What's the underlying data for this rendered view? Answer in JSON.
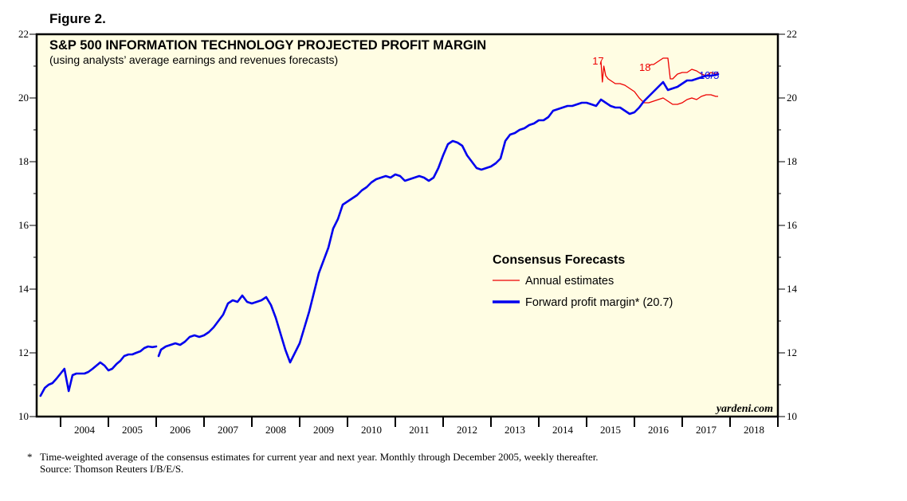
{
  "figure_label": "Figure 2.",
  "footnote": {
    "marker": "*",
    "line1": "Time-weighted average of the consensus estimates for current year and next year. Monthly through December 2005, weekly thereafter.",
    "line2": "Source: Thomson Reuters I/B/E/S."
  },
  "colors": {
    "forward": "#0000ee",
    "annual": "#ee0000",
    "background": "#fffde3",
    "frame": "#000000"
  },
  "chart_data": {
    "type": "line",
    "title": "S&P 500 INFORMATION TECHNOLOGY PROJECTED PROFIT MARGIN",
    "subtitle": "(using analysts’ average earnings and revenues forecasts)",
    "watermark": "yardeni.com",
    "xlim": [
      2003.5,
      2019.0
    ],
    "ylim": [
      10,
      22
    ],
    "yticks": [
      10,
      12,
      14,
      16,
      18,
      20,
      22
    ],
    "ytick_labels": [
      "10",
      "12",
      "14",
      "16",
      "18",
      "20",
      "22"
    ],
    "year_labels": [
      "2004",
      "2005",
      "2006",
      "2007",
      "2008",
      "2009",
      "2010",
      "2011",
      "2012",
      "2013",
      "2014",
      "2015",
      "2016",
      "2017",
      "2018"
    ],
    "legend": {
      "title": "Consensus Forecasts",
      "position": "center-right",
      "entries": [
        {
          "name": "Annual estimates",
          "style": "thin-red"
        },
        {
          "name": "Forward profit margin* (20.7)",
          "style": "thick-blue"
        }
      ]
    },
    "annotations": [
      {
        "text": "17",
        "x": 2015.12,
        "y": 21.05
      },
      {
        "text": "18",
        "x": 2016.1,
        "y": 20.85
      },
      {
        "text": "10/5",
        "x": 2017.35,
        "y": 20.6
      }
    ],
    "series": [
      {
        "name": "Forward profit margin",
        "segments": [
          {
            "x": [
              2003.58,
              2003.67,
              2003.75,
              2003.83,
              2003.92,
              2004.0,
              2004.08,
              2004.17,
              2004.25,
              2004.33,
              2004.42,
              2004.5,
              2004.58,
              2004.67,
              2004.75,
              2004.83,
              2004.92,
              2005.0,
              2005.08,
              2005.17,
              2005.25,
              2005.33,
              2005.42,
              2005.5,
              2005.58,
              2005.67,
              2005.75,
              2005.83,
              2005.92,
              2006.0
            ],
            "y": [
              10.65,
              10.9,
              11.0,
              11.05,
              11.2,
              11.35,
              11.5,
              10.8,
              11.3,
              11.35,
              11.35,
              11.35,
              11.4,
              11.5,
              11.6,
              11.7,
              11.6,
              11.45,
              11.5,
              11.65,
              11.75,
              11.9,
              11.95,
              11.95,
              12.0,
              12.05,
              12.15,
              12.2,
              12.18,
              12.2
            ]
          },
          {
            "x": [
              2006.05,
              2006.1,
              2006.2,
              2006.3,
              2006.4,
              2006.5,
              2006.6,
              2006.7,
              2006.8,
              2006.9,
              2007.0,
              2007.1,
              2007.2,
              2007.3,
              2007.4,
              2007.5,
              2007.6,
              2007.7,
              2007.8,
              2007.9,
              2008.0,
              2008.1,
              2008.2,
              2008.3,
              2008.4,
              2008.5,
              2008.6,
              2008.7,
              2008.8,
              2008.9,
              2009.0,
              2009.1,
              2009.2,
              2009.3,
              2009.4,
              2009.5,
              2009.6,
              2009.7,
              2009.8,
              2009.9,
              2010.0,
              2010.1,
              2010.2,
              2010.3,
              2010.4,
              2010.5,
              2010.6,
              2010.7,
              2010.8,
              2010.9,
              2011.0,
              2011.1,
              2011.2,
              2011.3,
              2011.4,
              2011.5,
              2011.6,
              2011.7,
              2011.8,
              2011.9,
              2012.0,
              2012.1,
              2012.2,
              2012.3,
              2012.4,
              2012.5,
              2012.6,
              2012.7,
              2012.8,
              2012.9,
              2013.0,
              2013.1,
              2013.2,
              2013.3,
              2013.4,
              2013.5,
              2013.6,
              2013.7,
              2013.8,
              2013.9,
              2014.0,
              2014.1,
              2014.2,
              2014.3,
              2014.4,
              2014.5,
              2014.6,
              2014.7,
              2014.8,
              2014.9,
              2015.0,
              2015.1,
              2015.2,
              2015.3,
              2015.4,
              2015.5,
              2015.6,
              2015.7,
              2015.8,
              2015.9,
              2016.0,
              2016.1,
              2016.2,
              2016.3,
              2016.4,
              2016.5,
              2016.6,
              2016.7,
              2016.8,
              2016.9,
              2017.0,
              2017.1,
              2017.2,
              2017.3,
              2017.4,
              2017.5,
              2017.6,
              2017.7,
              2017.75
            ],
            "y": [
              11.9,
              12.1,
              12.2,
              12.25,
              12.3,
              12.25,
              12.35,
              12.5,
              12.55,
              12.5,
              12.55,
              12.65,
              12.8,
              13.0,
              13.2,
              13.55,
              13.65,
              13.6,
              13.8,
              13.6,
              13.55,
              13.6,
              13.65,
              13.75,
              13.5,
              13.1,
              12.6,
              12.1,
              11.7,
              12.0,
              12.3,
              12.8,
              13.3,
              13.9,
              14.5,
              14.9,
              15.3,
              15.9,
              16.2,
              16.65,
              16.75,
              16.85,
              16.95,
              17.1,
              17.2,
              17.35,
              17.45,
              17.5,
              17.55,
              17.5,
              17.6,
              17.55,
              17.4,
              17.45,
              17.5,
              17.55,
              17.5,
              17.4,
              17.5,
              17.8,
              18.2,
              18.55,
              18.65,
              18.6,
              18.5,
              18.2,
              18.0,
              17.8,
              17.75,
              17.8,
              17.85,
              17.95,
              18.1,
              18.65,
              18.85,
              18.9,
              19.0,
              19.05,
              19.15,
              19.2,
              19.3,
              19.3,
              19.4,
              19.6,
              19.65,
              19.7,
              19.75,
              19.75,
              19.8,
              19.85,
              19.85,
              19.8,
              19.75,
              19.95,
              19.85,
              19.75,
              19.7,
              19.7,
              19.6,
              19.5,
              19.55,
              19.7,
              19.9,
              20.05,
              20.2,
              20.35,
              20.5,
              20.25,
              20.3,
              20.35,
              20.45,
              20.55,
              20.55,
              20.6,
              20.65,
              20.7,
              20.7,
              20.72,
              20.75
            ]
          }
        ]
      },
      {
        "name": "Annual estimates 17",
        "x": [
          2015.3,
          2015.33,
          2015.36,
          2015.4,
          2015.45,
          2015.5,
          2015.6,
          2015.7,
          2015.8,
          2015.9,
          2016.0,
          2016.1,
          2016.2,
          2016.3,
          2016.4,
          2016.5,
          2016.6,
          2016.7,
          2016.8,
          2016.9,
          2017.0,
          2017.1,
          2017.2,
          2017.3,
          2017.4,
          2017.5,
          2017.6,
          2017.7,
          2017.75
        ],
        "y": [
          21.15,
          20.5,
          21.0,
          20.7,
          20.6,
          20.55,
          20.45,
          20.45,
          20.4,
          20.3,
          20.2,
          20.0,
          19.85,
          19.85,
          19.9,
          19.95,
          20.0,
          19.9,
          19.8,
          19.8,
          19.85,
          19.95,
          20.0,
          19.95,
          20.05,
          20.1,
          20.1,
          20.05,
          20.05
        ]
      },
      {
        "name": "Annual estimates 18",
        "x": [
          2016.3,
          2016.35,
          2016.4,
          2016.5,
          2016.6,
          2016.7,
          2016.75,
          2016.8,
          2016.9,
          2017.0,
          2017.1,
          2017.2,
          2017.3,
          2017.4,
          2017.5,
          2017.6,
          2017.7,
          2017.75
        ],
        "y": [
          21.0,
          21.05,
          21.05,
          21.15,
          21.25,
          21.25,
          20.6,
          20.6,
          20.75,
          20.8,
          20.8,
          20.9,
          20.85,
          20.75,
          20.7,
          20.8,
          20.75,
          20.8
        ]
      }
    ]
  }
}
